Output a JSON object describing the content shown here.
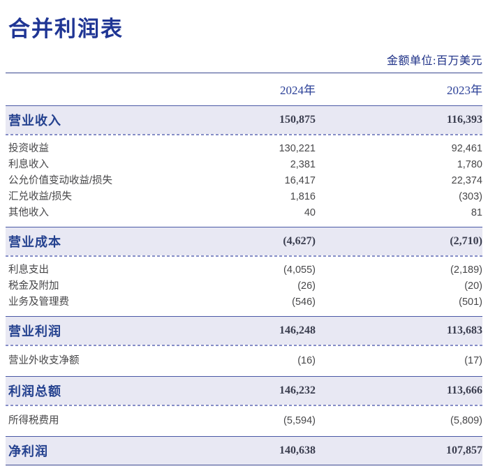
{
  "page": {
    "title": "合并利润表",
    "unit_note": "金额单位:百万美元"
  },
  "colors": {
    "title_navy": "#1f3594",
    "header_navy": "#2a3f97",
    "highlight_background": "#e8e8f3",
    "highlight_label": "#24418f",
    "highlight_value": "#3b3e4f",
    "detail_text": "#474749",
    "solid_rule": "#38468f",
    "dashed_rule": "#858dc7"
  },
  "table": {
    "year_columns": [
      "2024年",
      "2023年"
    ],
    "sections": [
      {
        "header": {
          "label": "营业收入",
          "v2024": "150,875",
          "v2023": "116,393"
        },
        "rows": [
          {
            "label": "投资收益",
            "v2024": "130,221",
            "v2023": "92,461"
          },
          {
            "label": "利息收入",
            "v2024": "2,381",
            "v2023": "1,780"
          },
          {
            "label": "公允价值变动收益/损失",
            "v2024": "16,417",
            "v2023": "22,374"
          },
          {
            "label": "汇兑收益/损失",
            "v2024": "1,816",
            "v2023": "(303)"
          },
          {
            "label": "其他收入",
            "v2024": "40",
            "v2023": "81"
          }
        ]
      },
      {
        "header": {
          "label": "营业成本",
          "v2024": "(4,627)",
          "v2023": "(2,710)"
        },
        "rows": [
          {
            "label": "利息支出",
            "v2024": "(4,055)",
            "v2023": "(2,189)"
          },
          {
            "label": "税金及附加",
            "v2024": "(26)",
            "v2023": "(20)"
          },
          {
            "label": "业务及管理费",
            "v2024": "(546)",
            "v2023": "(501)"
          }
        ]
      },
      {
        "header": {
          "label": "营业利润",
          "v2024": "146,248",
          "v2023": "113,683"
        },
        "rows": [
          {
            "label": "营业外收支净额",
            "v2024": "(16)",
            "v2023": "(17)"
          }
        ]
      },
      {
        "header": {
          "label": "利润总额",
          "v2024": "146,232",
          "v2023": "113,666"
        },
        "rows": [
          {
            "label": "所得税费用",
            "v2024": "(5,594)",
            "v2023": "(5,809)"
          }
        ]
      },
      {
        "header": {
          "label": "净利润",
          "v2024": "140,638",
          "v2023": "107,857"
        },
        "rows": []
      }
    ]
  }
}
